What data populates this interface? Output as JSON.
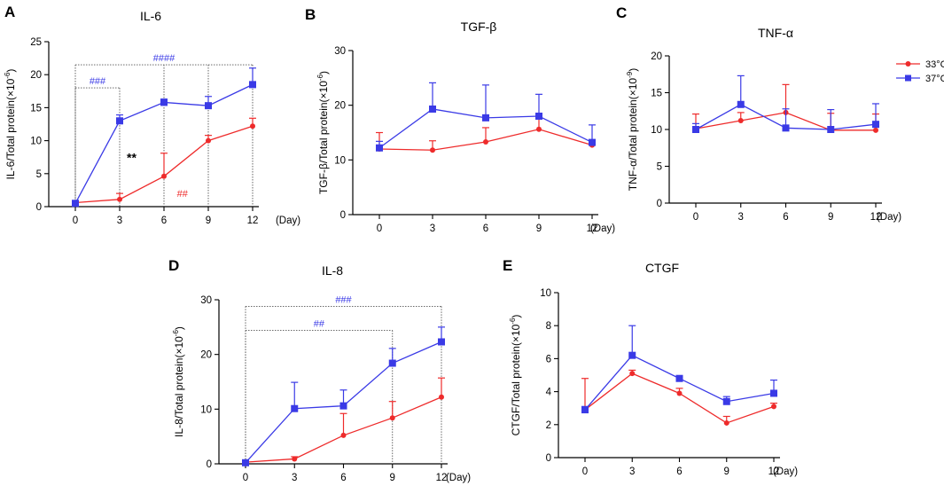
{
  "legend": {
    "items": [
      {
        "name": "33°C",
        "color": "#ee2b2b",
        "marker": "circle"
      },
      {
        "name": "37°C",
        "color": "#3a3ae6",
        "marker": "square"
      }
    ]
  },
  "colors": {
    "s33": "#ee2b2b",
    "s37": "#3a3ae6",
    "axis": "#000000",
    "bracket": "#555555"
  },
  "chart_data": [
    {
      "id": "A",
      "type": "line",
      "panel_label": "A",
      "title": "IL-6",
      "ylabel": "IL-6/Total protein(×10",
      "ylabel_sup": "-6",
      "ylabel_end": ")",
      "xlabel": "(Day)",
      "x": [
        0,
        3,
        6,
        9,
        12
      ],
      "xticks": [
        "0",
        "3",
        "6",
        "9",
        "12"
      ],
      "ylim": [
        0,
        25
      ],
      "yticks": [
        0,
        5,
        10,
        15,
        20,
        25
      ],
      "series": [
        {
          "name": "33°C",
          "values": [
            0.6,
            1.1,
            4.6,
            10.0,
            12.2
          ],
          "err": [
            0.3,
            0.9,
            3.5,
            0.8,
            1.2
          ]
        },
        {
          "name": "37°C",
          "values": [
            0.5,
            13.0,
            15.8,
            15.3,
            18.5
          ],
          "err": [
            0.3,
            0.9,
            0.5,
            1.4,
            2.5
          ]
        }
      ],
      "annotations": [
        {
          "text": "###",
          "color": "#3a3ae6",
          "bracket": [
            0,
            3
          ],
          "level": 18
        },
        {
          "text": "####",
          "color": "#3a3ae6",
          "bracket": [
            0,
            12
          ],
          "level": 21.5,
          "drops": [
            6,
            9
          ]
        },
        {
          "text": "**",
          "color": "#000000",
          "at_x": 3,
          "level": 7.3,
          "style": "bold"
        },
        {
          "text": "##",
          "color": "#ee2b2b",
          "at_x": 6.4,
          "level": 2.0
        }
      ]
    },
    {
      "id": "B",
      "type": "line",
      "panel_label": "B",
      "title": "TGF-β",
      "ylabel": "TGF-β/Total protein(×10",
      "ylabel_sup": "-6",
      "ylabel_end": ")",
      "xlabel": "(Day)",
      "x": [
        0,
        3,
        6,
        9,
        12
      ],
      "xticks": [
        "0",
        "3",
        "6",
        "9",
        "12"
      ],
      "ylim": [
        0,
        30
      ],
      "yticks": [
        0,
        10,
        20,
        30
      ],
      "series": [
        {
          "name": "33°C",
          "values": [
            12.0,
            11.8,
            13.3,
            15.6,
            12.7
          ],
          "err": [
            3.0,
            1.7,
            2.6,
            2.3,
            0.4
          ]
        },
        {
          "name": "37°C",
          "values": [
            12.2,
            19.3,
            17.7,
            18.0,
            13.2
          ],
          "err": [
            1.2,
            4.8,
            6.0,
            4.0,
            3.2
          ]
        }
      ],
      "annotations": []
    },
    {
      "id": "C",
      "type": "line",
      "panel_label": "C",
      "title": "TNF-α",
      "ylabel": "TNF-α/Total protein(×10",
      "ylabel_sup": "-9",
      "ylabel_end": ")",
      "xlabel": "(Day)",
      "x": [
        0,
        3,
        6,
        9,
        12
      ],
      "xticks": [
        "0",
        "3",
        "6",
        "9",
        "12"
      ],
      "ylim": [
        0,
        20
      ],
      "yticks": [
        0,
        5,
        10,
        15,
        20
      ],
      "series": [
        {
          "name": "33°C",
          "values": [
            10.1,
            11.2,
            12.3,
            9.9,
            9.9
          ],
          "err": [
            2.0,
            1.1,
            3.8,
            2.3,
            2.2
          ]
        },
        {
          "name": "37°C",
          "values": [
            10.0,
            13.4,
            10.2,
            10.0,
            10.7
          ],
          "err": [
            0.8,
            3.9,
            2.6,
            2.7,
            2.8
          ]
        }
      ],
      "annotations": []
    },
    {
      "id": "D",
      "type": "line",
      "panel_label": "D",
      "title": "IL-8",
      "ylabel": "IL-8/Total protein(×10",
      "ylabel_sup": "-6",
      "ylabel_end": ")",
      "xlabel": "(Day)",
      "x": [
        0,
        3,
        6,
        9,
        12
      ],
      "xticks": [
        "0",
        "3",
        "6",
        "9",
        "12"
      ],
      "ylim": [
        0,
        30
      ],
      "yticks": [
        0,
        10,
        20,
        30
      ],
      "series": [
        {
          "name": "33°C",
          "values": [
            0.3,
            0.9,
            5.2,
            8.4,
            12.2
          ],
          "err": [
            0.2,
            0.4,
            4.0,
            3.0,
            3.5
          ]
        },
        {
          "name": "37°C",
          "values": [
            0.2,
            10.1,
            10.6,
            18.4,
            22.3
          ],
          "err": [
            0.3,
            4.8,
            2.9,
            2.7,
            2.7
          ]
        }
      ],
      "annotations": [
        {
          "text": "##",
          "color": "#3a3ae6",
          "bracket": [
            0,
            9
          ],
          "level": 24.4
        },
        {
          "text": "###",
          "color": "#3a3ae6",
          "bracket": [
            0,
            12
          ],
          "level": 28.8
        }
      ]
    },
    {
      "id": "E",
      "type": "line",
      "panel_label": "E",
      "title": "CTGF",
      "ylabel": "CTGF/Total protein(×10",
      "ylabel_sup": "-6",
      "ylabel_end": ")",
      "xlabel": "(Day)",
      "x": [
        0,
        3,
        6,
        9,
        12
      ],
      "xticks": [
        "0",
        "3",
        "6",
        "9",
        "12"
      ],
      "ylim": [
        0,
        10
      ],
      "yticks": [
        0,
        2,
        4,
        6,
        8,
        10
      ],
      "series": [
        {
          "name": "33°C",
          "values": [
            2.9,
            5.1,
            3.9,
            2.1,
            3.1
          ],
          "err": [
            1.9,
            0.2,
            0.3,
            0.4,
            0.2
          ]
        },
        {
          "name": "37°C",
          "values": [
            2.9,
            6.2,
            4.8,
            3.4,
            3.9
          ],
          "err": [
            0.2,
            1.8,
            0.1,
            0.3,
            0.8
          ]
        }
      ],
      "annotations": []
    }
  ]
}
